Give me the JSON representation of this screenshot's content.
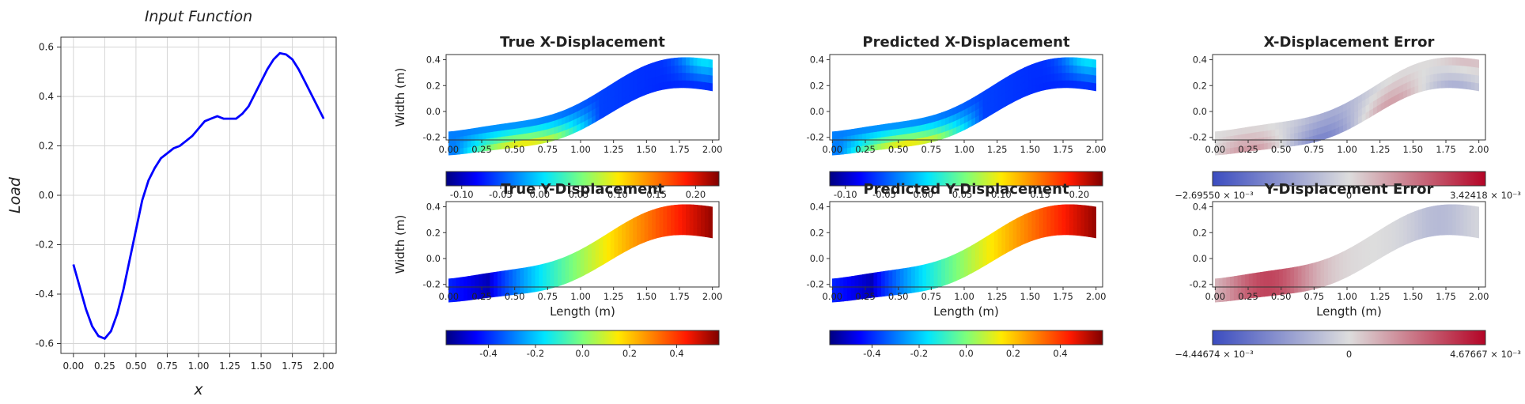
{
  "chart_data": [
    {
      "id": "input",
      "type": "line",
      "title": "Input Function",
      "xlabel": "x",
      "ylabel": "Load",
      "xlim": [
        -0.1,
        2.1
      ],
      "ylim": [
        -0.64,
        0.64
      ],
      "xticks": [
        "0.00",
        "0.25",
        "0.50",
        "0.75",
        "1.00",
        "1.25",
        "1.50",
        "1.75",
        "2.00"
      ],
      "yticks": [
        "-0.6",
        "-0.4",
        "-0.2",
        "0.0",
        "0.2",
        "0.4",
        "0.6"
      ],
      "grid": true,
      "color": "#0000ff",
      "x": [
        0.0,
        0.05,
        0.1,
        0.15,
        0.2,
        0.25,
        0.3,
        0.35,
        0.4,
        0.45,
        0.5,
        0.55,
        0.6,
        0.65,
        0.7,
        0.75,
        0.8,
        0.85,
        0.9,
        0.95,
        1.0,
        1.05,
        1.1,
        1.15,
        1.2,
        1.25,
        1.3,
        1.35,
        1.4,
        1.45,
        1.5,
        1.55,
        1.6,
        1.65,
        1.7,
        1.75,
        1.8,
        1.85,
        1.9,
        1.95,
        2.0
      ],
      "y": [
        -0.28,
        -0.37,
        -0.46,
        -0.53,
        -0.57,
        -0.58,
        -0.55,
        -0.48,
        -0.38,
        -0.26,
        -0.14,
        -0.02,
        0.06,
        0.11,
        0.15,
        0.17,
        0.19,
        0.2,
        0.22,
        0.24,
        0.27,
        0.3,
        0.31,
        0.32,
        0.31,
        0.31,
        0.31,
        0.33,
        0.36,
        0.41,
        0.46,
        0.51,
        0.55,
        0.575,
        0.57,
        0.55,
        0.51,
        0.46,
        0.41,
        0.36,
        0.31
      ]
    },
    {
      "id": "true-x",
      "type": "heatmap",
      "title": "True X-Displacement",
      "ylabel": "Width (m)",
      "xlabel": "",
      "xticks": [
        "0.00",
        "0.25",
        "0.50",
        "0.75",
        "1.00",
        "1.25",
        "1.50",
        "1.75",
        "2.00"
      ],
      "yticks": [
        "-0.2",
        "0.0",
        "0.2",
        "0.4"
      ],
      "colormap": "jet",
      "field": "x",
      "colorbar": {
        "ticks": [
          "-0.10",
          "-0.05",
          "0.00",
          "0.05",
          "0.10",
          "0.15",
          "0.20"
        ],
        "range": [
          -0.12,
          0.23
        ]
      }
    },
    {
      "id": "pred-x",
      "type": "heatmap",
      "title": "Predicted X-Displacement",
      "ylabel": "",
      "xlabel": "",
      "xticks": [
        "0.00",
        "0.25",
        "0.50",
        "0.75",
        "1.00",
        "1.25",
        "1.50",
        "1.75",
        "2.00"
      ],
      "yticks": [
        "-0.2",
        "0.0",
        "0.2",
        "0.4"
      ],
      "colormap": "jet",
      "field": "x",
      "colorbar": {
        "ticks": [
          "-0.10",
          "-0.05",
          "0.00",
          "0.05",
          "0.10",
          "0.15",
          "0.20"
        ],
        "range": [
          -0.12,
          0.23
        ]
      }
    },
    {
      "id": "err-x",
      "type": "heatmap",
      "title": "X-Displacement Error",
      "ylabel": "",
      "xlabel": "",
      "xticks": [
        "0.00",
        "0.25",
        "0.50",
        "0.75",
        "1.00",
        "1.25",
        "1.50",
        "1.75",
        "2.00"
      ],
      "yticks": [
        "-0.2",
        "0.0",
        "0.2",
        "0.4"
      ],
      "colormap": "coolwarm",
      "field": "errx",
      "colorbar": {
        "left_label": "−2.69550 × 10⁻³",
        "mid_label": "0",
        "right_label": "3.42418 × 10⁻³"
      }
    },
    {
      "id": "true-y",
      "type": "heatmap",
      "title": "True Y-Displacement",
      "ylabel": "Width (m)",
      "xlabel": "Length (m)",
      "xticks": [
        "0.00",
        "0.25",
        "0.50",
        "0.75",
        "1.00",
        "1.25",
        "1.50",
        "1.75",
        "2.00"
      ],
      "yticks": [
        "-0.2",
        "0.0",
        "0.2",
        "0.4"
      ],
      "colormap": "jet",
      "field": "y",
      "colorbar": {
        "ticks": [
          "-0.4",
          "-0.2",
          "0.0",
          "0.2",
          "0.4"
        ],
        "range": [
          -0.58,
          0.58
        ]
      }
    },
    {
      "id": "pred-y",
      "type": "heatmap",
      "title": "Predicted Y-Displacement",
      "ylabel": "",
      "xlabel": "Length (m)",
      "xticks": [
        "0.00",
        "0.25",
        "0.50",
        "0.75",
        "1.00",
        "1.25",
        "1.50",
        "1.75",
        "2.00"
      ],
      "yticks": [
        "-0.2",
        "0.0",
        "0.2",
        "0.4"
      ],
      "colormap": "jet",
      "field": "y",
      "colorbar": {
        "ticks": [
          "-0.4",
          "-0.2",
          "0.0",
          "0.2",
          "0.4"
        ],
        "range": [
          -0.58,
          0.58
        ]
      }
    },
    {
      "id": "err-y",
      "type": "heatmap",
      "title": "Y-Displacement Error",
      "ylabel": "",
      "xlabel": "Length (m)",
      "xticks": [
        "0.00",
        "0.25",
        "0.50",
        "0.75",
        "1.00",
        "1.25",
        "1.50",
        "1.75",
        "2.00"
      ],
      "yticks": [
        "-0.2",
        "0.0",
        "0.2",
        "0.4"
      ],
      "colormap": "coolwarm",
      "field": "erry",
      "colorbar": {
        "left_label": "−4.44674 × 10⁻³",
        "mid_label": "0",
        "right_label": "4.67667 × 10⁻³"
      }
    }
  ]
}
